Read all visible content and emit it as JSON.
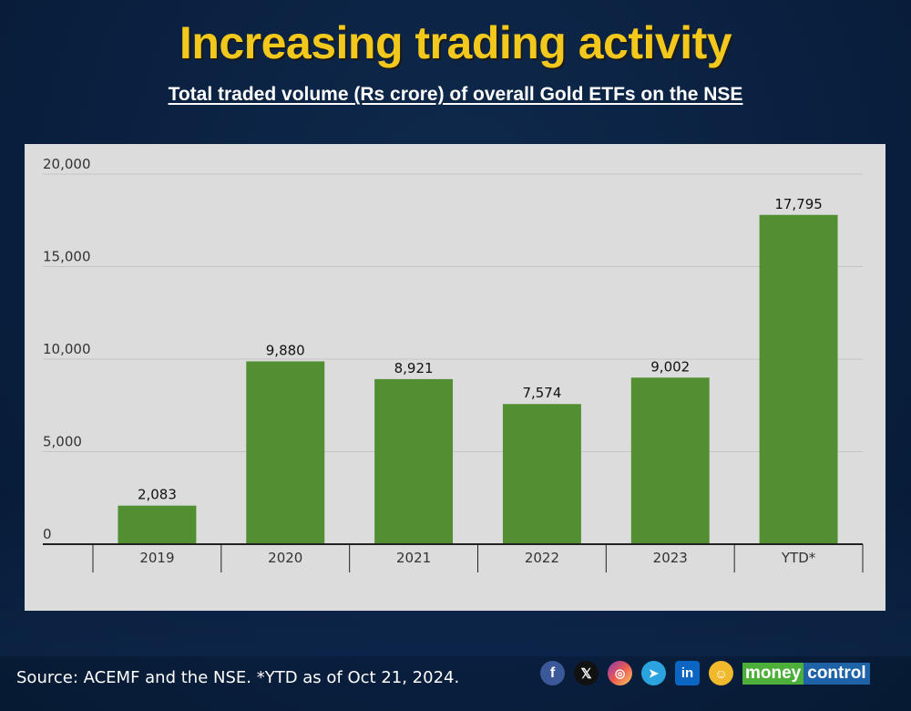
{
  "header": {
    "title": "Increasing trading activity",
    "subtitle": "Total traded volume (Rs crore) of overall Gold ETFs on the NSE"
  },
  "footer": {
    "source": "Source: ACEMF and the NSE. *YTD as of Oct 21, 2024.",
    "social_icons": [
      "facebook-icon",
      "x-icon",
      "instagram-icon",
      "telegram-icon",
      "linkedin-icon",
      "mascot-icon"
    ],
    "brand": {
      "part1": "money",
      "part2": "control"
    }
  },
  "colors": {
    "title": "#f2c81c",
    "bar": "#528f32",
    "panel": "#dcdcdc"
  },
  "chart_data": {
    "type": "bar",
    "title": "Increasing trading activity",
    "subtitle": "Total traded volume (Rs crore) of overall Gold ETFs on the NSE",
    "categories": [
      "2019",
      "2020",
      "2021",
      "2022",
      "2023",
      "YTD*"
    ],
    "values": [
      2083,
      9880,
      8921,
      7574,
      9002,
      17795
    ],
    "data_labels": [
      "2,083",
      "9,880",
      "8,921",
      "7,574",
      "9,002",
      "17,795"
    ],
    "xlabel": "",
    "ylabel": "",
    "ylim": [
      0,
      20000
    ],
    "yticks": [
      0,
      5000,
      10000,
      15000,
      20000
    ],
    "ytick_labels": [
      "0",
      "5,000",
      "10,000",
      "15,000",
      "20,000"
    ],
    "grid": true,
    "legend": "none"
  }
}
